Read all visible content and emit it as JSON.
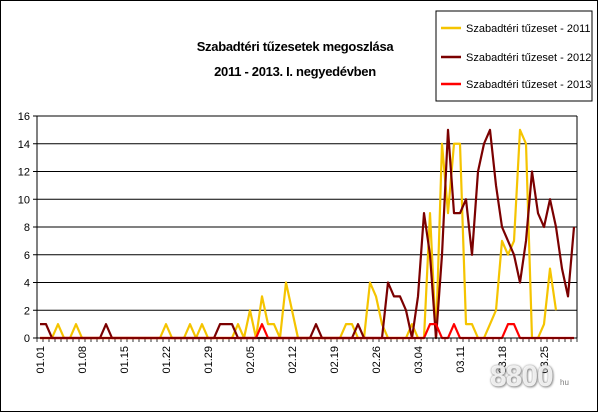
{
  "chart_data": {
    "type": "line",
    "title_lines": [
      "Szabadtéri tűzesetek megoszlása",
      "2011 - 2013. I. negyedévben"
    ],
    "xlabel": "",
    "ylabel": "",
    "ylim": [
      0,
      16
    ],
    "yticks": [
      0,
      2,
      4,
      6,
      8,
      10,
      12,
      14,
      16
    ],
    "grid": "horizontal",
    "legend_position": "top-right",
    "x_tick_labels": [
      "01.01",
      "01.08",
      "01.15",
      "01.22",
      "01.29",
      "02.05",
      "02.12",
      "02.19",
      "02.26",
      "03.04",
      "03.11",
      "03.18",
      "03.25"
    ],
    "x_tick_every": 7,
    "series": [
      {
        "name": "Szabadtéri tűzeset - 2011",
        "color": "#f5c400",
        "values": [
          0,
          0,
          0,
          1,
          0,
          0,
          1,
          0,
          0,
          0,
          0,
          0,
          0,
          0,
          0,
          0,
          0,
          0,
          0,
          0,
          0,
          1,
          0,
          0,
          0,
          1,
          0,
          1,
          0,
          0,
          0,
          0,
          0,
          1,
          0,
          2,
          0,
          3,
          1,
          1,
          0,
          4,
          2,
          0,
          0,
          0,
          0,
          0,
          0,
          0,
          0,
          1,
          1,
          0,
          0,
          4,
          3,
          1,
          0,
          0,
          0,
          0,
          1,
          0,
          0,
          9,
          0,
          14,
          9,
          14,
          14,
          1,
          1,
          0,
          0,
          1,
          2,
          7,
          6,
          7,
          15,
          14,
          0,
          0,
          1,
          5,
          2
        ]
      },
      {
        "name": "Szabadtéri tűzeset - 2012",
        "color": "#7b0000",
        "values": [
          1,
          1,
          0,
          0,
          0,
          0,
          0,
          0,
          0,
          0,
          0,
          1,
          0,
          0,
          0,
          0,
          0,
          0,
          0,
          0,
          0,
          0,
          0,
          0,
          0,
          0,
          0,
          0,
          0,
          0,
          1,
          1,
          1,
          0,
          0,
          0,
          0,
          0,
          0,
          0,
          0,
          0,
          0,
          0,
          0,
          0,
          1,
          0,
          0,
          0,
          0,
          0,
          0,
          1,
          0,
          0,
          0,
          0,
          4,
          3,
          3,
          2,
          0,
          3,
          9,
          6,
          0,
          6,
          15,
          9,
          9,
          10,
          6,
          12,
          14,
          15,
          11,
          8,
          7,
          6,
          4,
          7,
          12,
          9,
          8,
          10,
          8,
          5,
          3,
          8
        ]
      },
      {
        "name": "Szabadtéri tűzeset - 2013",
        "color": "#ff0000",
        "values": [
          0,
          0,
          0,
          0,
          0,
          0,
          0,
          0,
          0,
          0,
          0,
          0,
          0,
          0,
          0,
          0,
          0,
          0,
          0,
          0,
          0,
          0,
          0,
          0,
          0,
          0,
          0,
          0,
          0,
          0,
          0,
          0,
          0,
          0,
          0,
          0,
          0,
          1,
          0,
          0,
          0,
          0,
          0,
          0,
          0,
          0,
          0,
          0,
          0,
          0,
          0,
          0,
          0,
          0,
          0,
          0,
          0,
          0,
          0,
          0,
          0,
          0,
          0,
          0,
          0,
          1,
          1,
          0,
          0,
          1,
          0,
          0,
          0,
          0,
          0,
          0,
          0,
          0,
          1,
          1,
          0,
          0,
          0,
          0,
          0,
          0,
          0,
          0,
          0,
          0
        ]
      }
    ]
  },
  "watermark": {
    "text": "8800",
    "suffix": "hu"
  }
}
